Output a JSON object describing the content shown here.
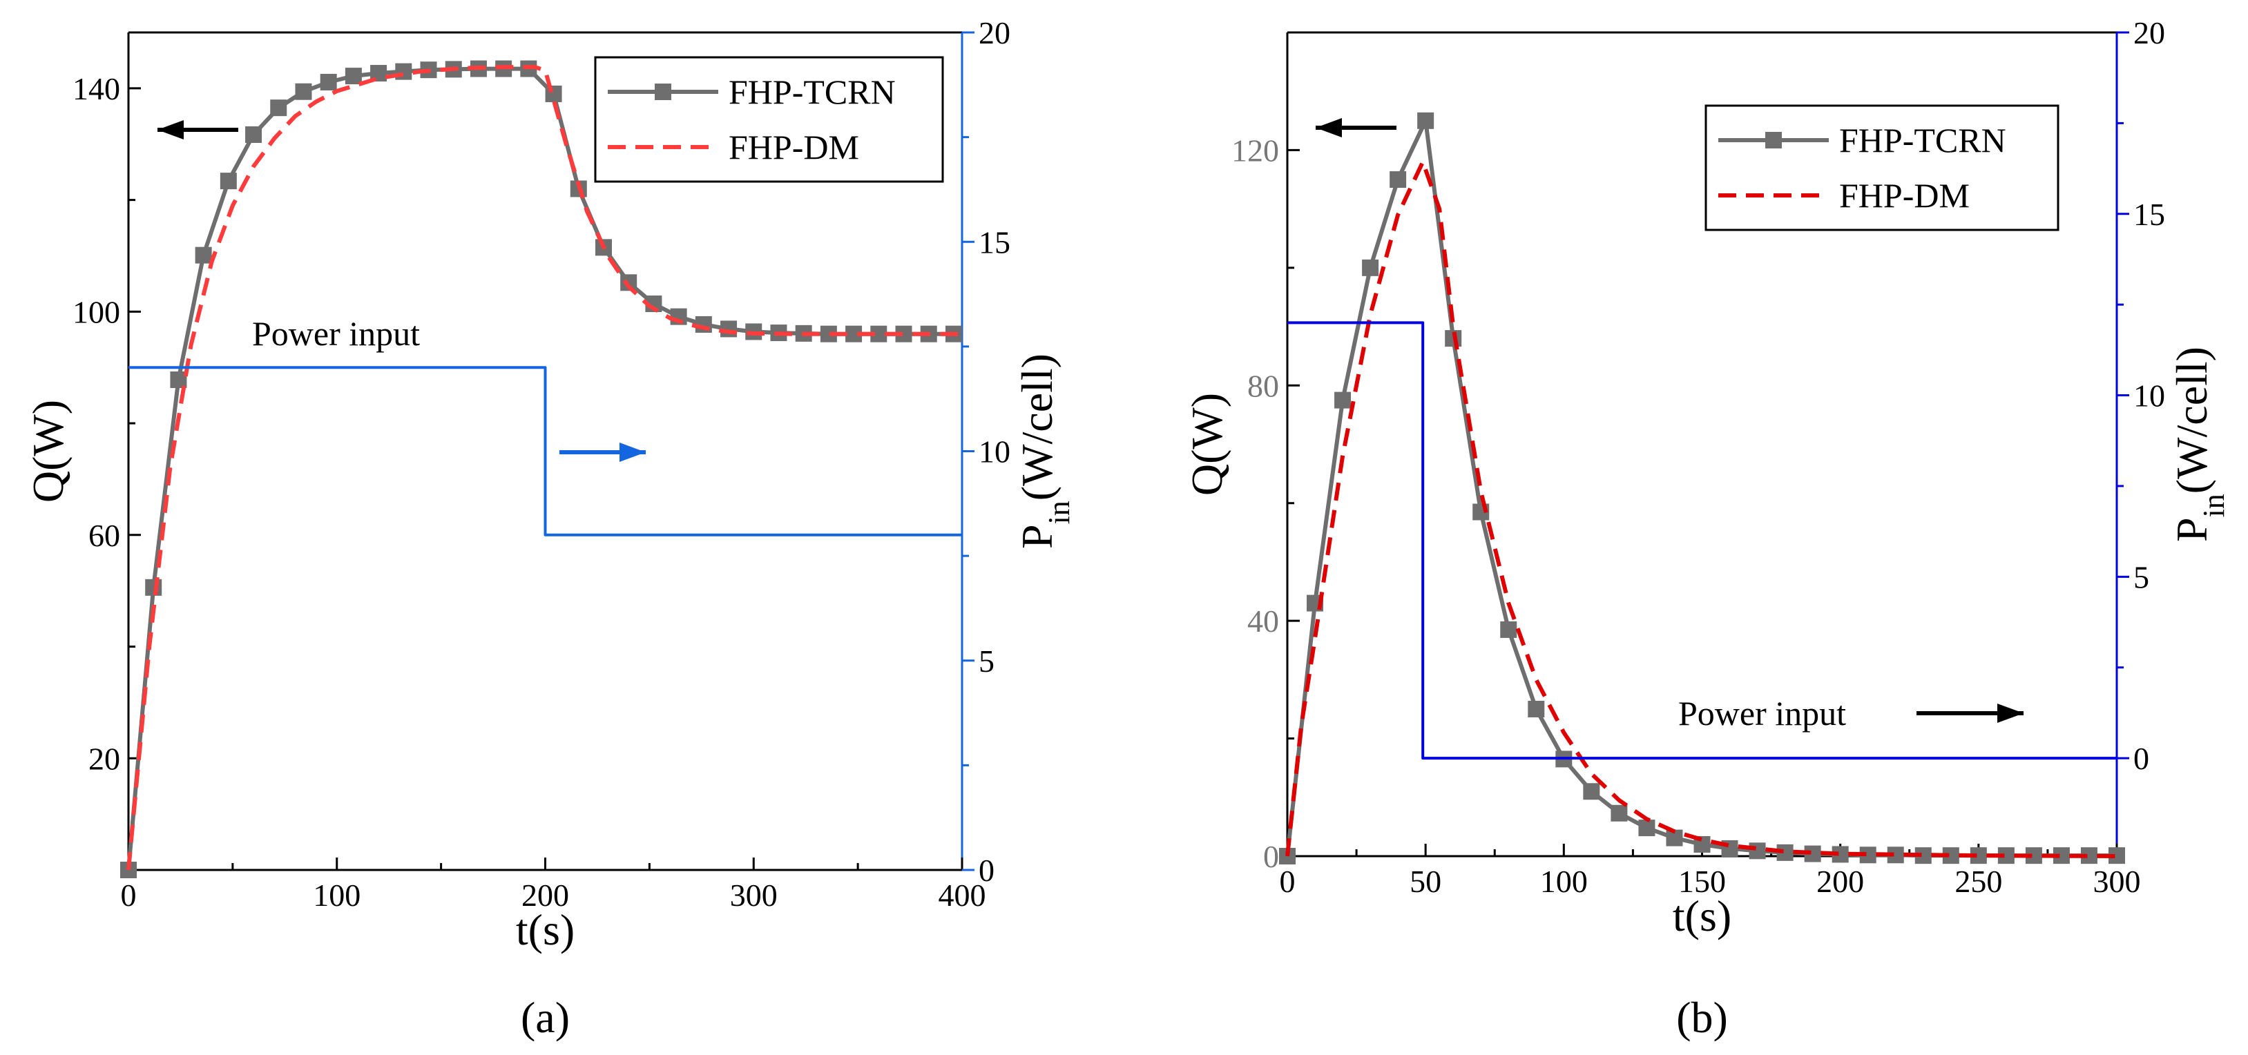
{
  "chart_data": [
    {
      "type": "line",
      "panel_label": "(a)",
      "xlabel": "t(s)",
      "ylabel": "Q(W)",
      "y2label_main": "P",
      "y2label_sub": "in",
      "y2label_rest": "(W/cell)",
      "xlim": [
        0,
        400
      ],
      "ylim": [
        0,
        150
      ],
      "y2lim": [
        0,
        20
      ],
      "xticks": [
        0,
        100,
        200,
        300,
        400
      ],
      "yticks": [
        20,
        60,
        100,
        140
      ],
      "y2ticks": [
        0,
        5,
        10,
        15,
        20
      ],
      "annotation": "Power input",
      "legend": [
        "FHP-TCRN",
        "FHP-DM"
      ],
      "legend_position": "top-right",
      "series": [
        {
          "name": "FHP-TCRN",
          "axis": "left",
          "color": "#6e6e6e",
          "style": "solid-square",
          "x": [
            0,
            12,
            24,
            36,
            48,
            60,
            72,
            84,
            96,
            108,
            120,
            132,
            144,
            156,
            168,
            180,
            192,
            204,
            216,
            228,
            240,
            252,
            264,
            276,
            288,
            300,
            312,
            324,
            336,
            348,
            360,
            372,
            384,
            396
          ],
          "values": [
            0,
            50.6,
            87.8,
            110.1,
            123.4,
            131.7,
            136.5,
            139.4,
            141.1,
            142.2,
            142.7,
            143.0,
            143.3,
            143.4,
            143.5,
            143.5,
            143.5,
            139.0,
            122.0,
            111.5,
            105.2,
            101.4,
            99.1,
            97.7,
            96.9,
            96.4,
            96.2,
            96.1,
            96.0,
            96.0,
            96.0,
            96.0,
            96.0,
            96.0
          ]
        },
        {
          "name": "FHP-DM",
          "axis": "left",
          "color": "#ff3b3b",
          "style": "dashed",
          "x": [
            0,
            10,
            20,
            30,
            40,
            50,
            60,
            70,
            80,
            90,
            100,
            120,
            140,
            160,
            180,
            195,
            200,
            210,
            220,
            230,
            240,
            250,
            260,
            270,
            280,
            290,
            300,
            320,
            340,
            360,
            380,
            400
          ],
          "values": [
            0,
            40,
            72,
            94,
            109,
            119,
            126,
            131,
            135,
            137.6,
            139.5,
            141.8,
            143,
            143.6,
            143.8,
            143.8,
            143.2,
            130,
            118,
            110,
            104.5,
            101,
            98.8,
            97.6,
            96.8,
            96.3,
            96.1,
            96,
            96,
            96,
            96,
            96
          ]
        },
        {
          "name": "Power input",
          "axis": "right",
          "color": "#1466e0",
          "style": "step",
          "x": [
            0,
            200,
            200,
            400
          ],
          "values": [
            12,
            12,
            8,
            8
          ]
        }
      ]
    },
    {
      "type": "line",
      "panel_label": "(b)",
      "xlabel": "t(s)",
      "ylabel": "Q(W)",
      "y2label_main": "P",
      "y2label_sub": "in",
      "y2label_rest": "(W/cell)",
      "xlim": [
        0,
        300
      ],
      "ylim": [
        0,
        140
      ],
      "y2lim": [
        -2.7,
        20
      ],
      "xticks": [
        0,
        50,
        100,
        150,
        200,
        250,
        300
      ],
      "yticks": [
        0,
        40,
        80,
        120
      ],
      "y2ticks": [
        0,
        5,
        10,
        15,
        20
      ],
      "annotation": "Power input",
      "legend": [
        "FHP-TCRN",
        "FHP-DM"
      ],
      "legend_position": "top-right",
      "series": [
        {
          "name": "FHP-TCRN",
          "axis": "left",
          "color": "#6e6e6e",
          "style": "solid-square",
          "x": [
            0,
            10,
            20,
            30,
            40,
            50,
            60,
            70,
            80,
            90,
            100,
            110,
            120,
            130,
            140,
            150,
            160,
            170,
            180,
            190,
            200,
            210,
            220,
            230,
            240,
            250,
            260,
            270,
            280,
            290,
            300
          ],
          "values": [
            0,
            43,
            77.5,
            100,
            115,
            125,
            88,
            58.5,
            38.5,
            25,
            16.5,
            11,
            7.3,
            4.8,
            3.1,
            2,
            1.3,
            0.9,
            0.6,
            0.4,
            0.3,
            0.2,
            0.2,
            0.1,
            0.1,
            0.1,
            0.1,
            0.1,
            0.1,
            0.1,
            0.1
          ]
        },
        {
          "name": "FHP-DM",
          "axis": "left",
          "color": "#e00000",
          "style": "dashed",
          "x": [
            0,
            5,
            10,
            20,
            30,
            40,
            49,
            55,
            60,
            70,
            80,
            90,
            100,
            110,
            120,
            130,
            140,
            150,
            160,
            180,
            200,
            250,
            300
          ],
          "values": [
            0,
            22,
            37,
            68,
            92,
            109,
            118,
            110,
            90,
            62,
            43,
            30,
            21,
            14,
            9.5,
            6.3,
            4.2,
            2.8,
            1.8,
            0.8,
            0.4,
            0.1,
            0
          ]
        },
        {
          "name": "Power input",
          "axis": "right",
          "color": "#0000e0",
          "style": "step",
          "x": [
            0,
            49,
            49,
            300
          ],
          "values": [
            12,
            12,
            0,
            0
          ]
        }
      ]
    }
  ]
}
